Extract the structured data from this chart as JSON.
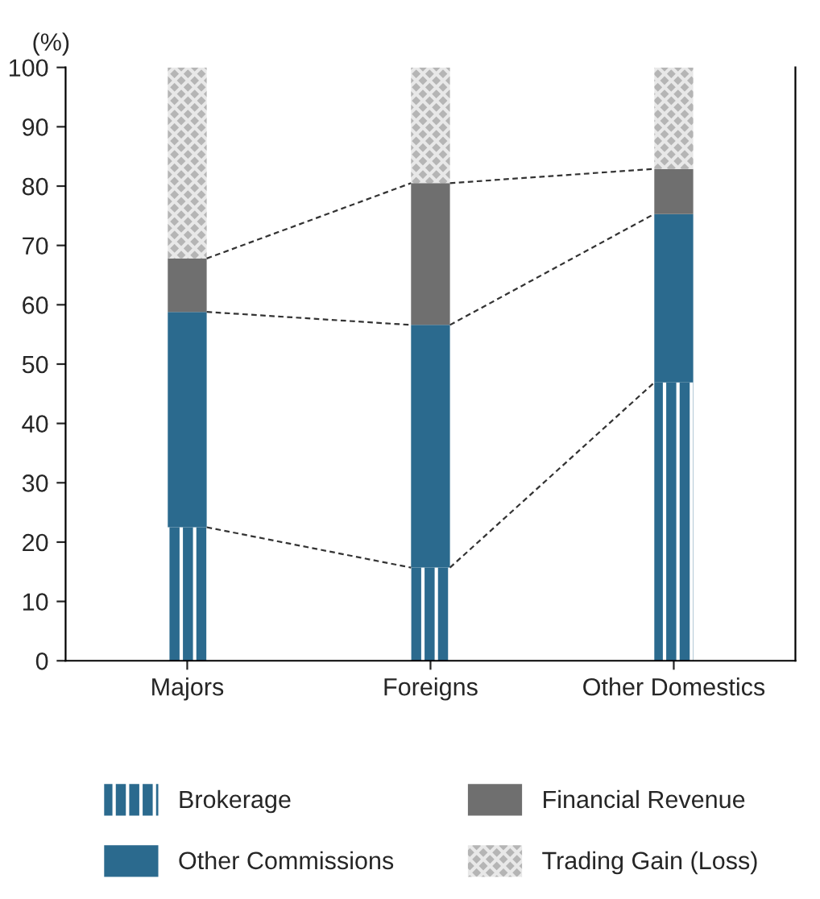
{
  "chart_data": {
    "type": "bar",
    "stacked": true,
    "ylabel": "(%)",
    "categories": [
      "Majors",
      "Foreigns",
      "Other Domestics"
    ],
    "series": [
      {
        "name": "Brokerage",
        "color": "#2b6a8e",
        "values": [
          22.5,
          15.7,
          46.9
        ]
      },
      {
        "name": "Other Commissions",
        "color": "#2b6a8e",
        "values": [
          36.3,
          40.9,
          28.4
        ]
      },
      {
        "name": "Financial Revenue",
        "color": "#6f6f6f",
        "values": [
          9.0,
          23.9,
          7.6
        ]
      },
      {
        "name": "Trading Gain (Loss)",
        "color": "#b5b5b5",
        "values": [
          32.2,
          19.5,
          17.1
        ]
      }
    ],
    "ylim": [
      0,
      100
    ],
    "yticks": [
      0,
      10,
      20,
      30,
      40,
      50,
      60,
      70,
      80,
      90,
      100
    ],
    "grid": false,
    "legend": "bottom"
  }
}
